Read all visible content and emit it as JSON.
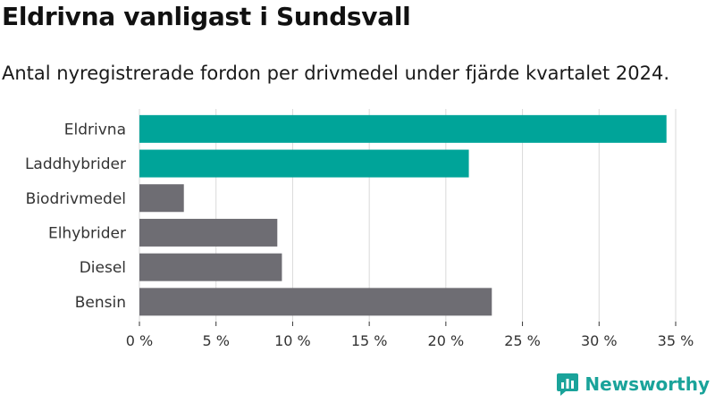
{
  "title": "Eldrivna vanligast i Sundsvall",
  "subtitle": "Antal nyregistrerade fordon per drivmedel under fjärde kvartalet 2024.",
  "brand": {
    "name": "Newsworthy",
    "icon": "newsworthy-logo-icon"
  },
  "colors": {
    "highlight": "#00a499",
    "default": "#6e6d73",
    "grid": "#d9d9d9"
  },
  "chart_data": {
    "type": "bar",
    "orientation": "horizontal",
    "title": "Eldrivna vanligast i Sundsvall",
    "subtitle": "Antal nyregistrerade fordon per drivmedel under fjärde kvartalet 2024.",
    "categories": [
      "Eldrivna",
      "Laddhybrider",
      "Biodrivmedel",
      "Elhybrider",
      "Diesel",
      "Bensin"
    ],
    "values": [
      34.4,
      21.5,
      2.9,
      9.0,
      9.3,
      23.0
    ],
    "highlighted": [
      true,
      true,
      false,
      false,
      false,
      false
    ],
    "unit": "%",
    "xlim": [
      0,
      35
    ],
    "xticks": [
      0,
      5,
      10,
      15,
      20,
      25,
      30,
      35
    ],
    "xtick_labels": [
      "0 %",
      "5 %",
      "10 %",
      "15 %",
      "20 %",
      "25 %",
      "30 %",
      "35 %"
    ],
    "xlabel": "",
    "ylabel": "",
    "grid": true
  }
}
